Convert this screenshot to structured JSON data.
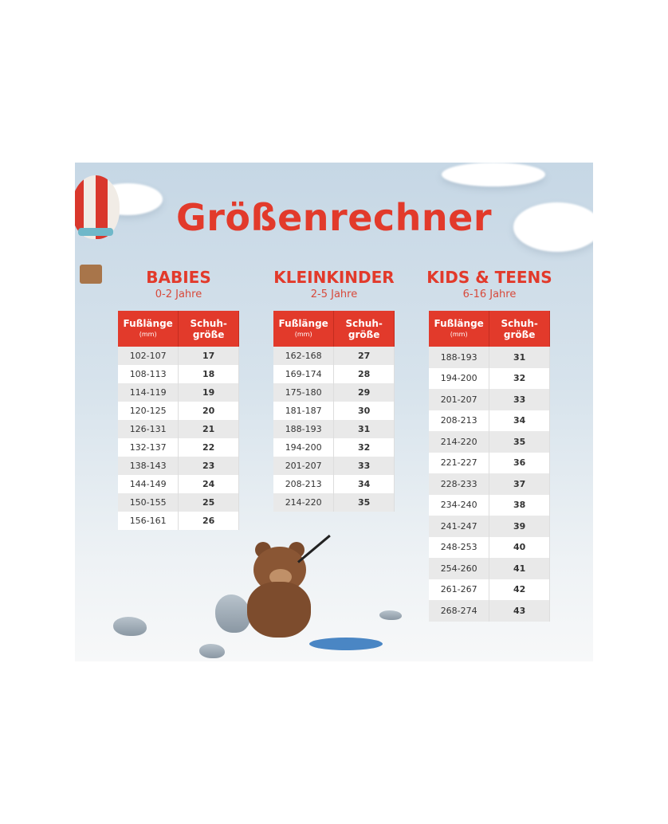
{
  "title": "Größenrechner",
  "header_col1": "Fußlänge",
  "header_col1_unit": "(mm)",
  "header_col2_line1": "Schuh-",
  "header_col2_line2": "größe",
  "colors": {
    "accent": "#e23a2b",
    "background": "#d7e3ec"
  },
  "sections": [
    {
      "title": "BABIES",
      "subtitle": "0-2 Jahre",
      "rows": [
        [
          "102-107",
          "17"
        ],
        [
          "108-113",
          "18"
        ],
        [
          "114-119",
          "19"
        ],
        [
          "120-125",
          "20"
        ],
        [
          "126-131",
          "21"
        ],
        [
          "132-137",
          "22"
        ],
        [
          "138-143",
          "23"
        ],
        [
          "144-149",
          "24"
        ],
        [
          "150-155",
          "25"
        ],
        [
          "156-161",
          "26"
        ]
      ]
    },
    {
      "title": "KLEINKINDER",
      "subtitle": "2-5 Jahre",
      "rows": [
        [
          "162-168",
          "27"
        ],
        [
          "169-174",
          "28"
        ],
        [
          "175-180",
          "29"
        ],
        [
          "181-187",
          "30"
        ],
        [
          "188-193",
          "31"
        ],
        [
          "194-200",
          "32"
        ],
        [
          "201-207",
          "33"
        ],
        [
          "208-213",
          "34"
        ],
        [
          "214-220",
          "35"
        ]
      ]
    },
    {
      "title": "KIDS & TEENS",
      "subtitle": "6-16 Jahre",
      "rows": [
        [
          "188-193",
          "31"
        ],
        [
          "194-200",
          "32"
        ],
        [
          "201-207",
          "33"
        ],
        [
          "208-213",
          "34"
        ],
        [
          "214-220",
          "35"
        ],
        [
          "221-227",
          "36"
        ],
        [
          "228-233",
          "37"
        ],
        [
          "234-240",
          "38"
        ],
        [
          "241-247",
          "39"
        ],
        [
          "248-253",
          "40"
        ],
        [
          "254-260",
          "41"
        ],
        [
          "261-267",
          "42"
        ],
        [
          "268-274",
          "43"
        ]
      ]
    }
  ],
  "decorations": [
    "hot-air-balloon",
    "clouds",
    "teddy-bear-fishing",
    "rocks",
    "puddle"
  ]
}
